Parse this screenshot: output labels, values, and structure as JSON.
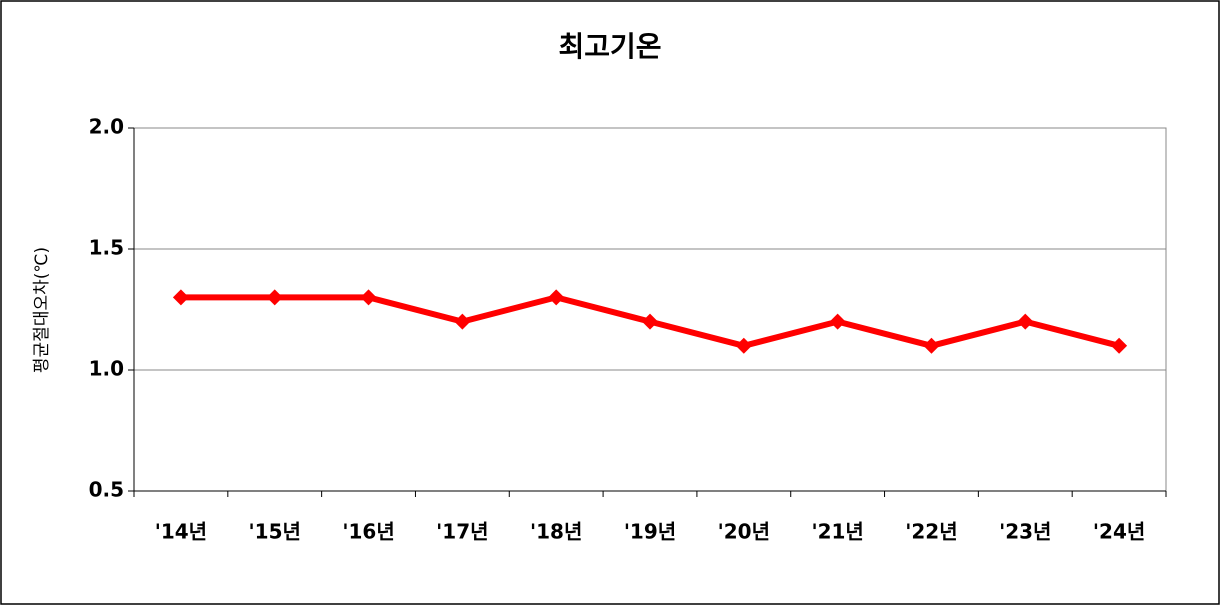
{
  "chart_data": {
    "type": "line",
    "title": "최고기온",
    "y_label": "평균절대오차(℃)",
    "categories": [
      "'14년",
      "'15년",
      "'16년",
      "'17년",
      "'18년",
      "'19년",
      "'20년",
      "'21년",
      "'22년",
      "'23년",
      "'24년"
    ],
    "values": [
      1.3,
      1.3,
      1.3,
      1.2,
      1.3,
      1.2,
      1.1,
      1.2,
      1.1,
      1.2,
      1.1
    ],
    "color": "#ff0000",
    "ylim": [
      0.5,
      2.0
    ],
    "yticks": [
      0.5,
      {
        "value": 1.0,
        "label": "1.0"
      },
      1.5,
      {
        "value": 2.0,
        "label": "2.0"
      }
    ],
    "grid": true
  }
}
